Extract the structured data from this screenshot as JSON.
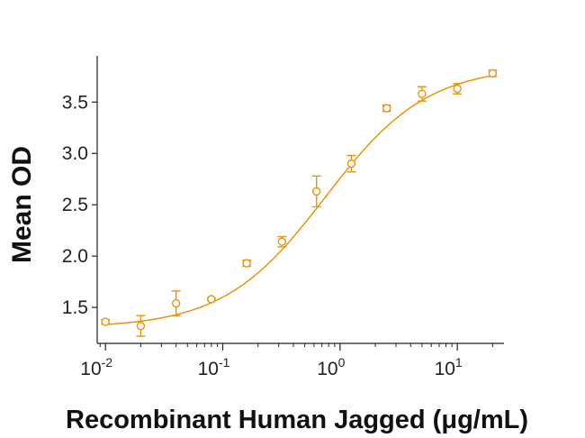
{
  "chart_data": {
    "type": "scatter",
    "title": "",
    "xlabel": "Recombinant Human Jagged (μg/mL)",
    "ylabel": "Mean OD",
    "x_scale": "log",
    "xlim": [
      0.0085,
      25
    ],
    "ylim": [
      1.15,
      3.95
    ],
    "x_ticks": [
      {
        "value": 0.01,
        "base": "10",
        "exp": "-2"
      },
      {
        "value": 0.1,
        "base": "10",
        "exp": "-1"
      },
      {
        "value": 1,
        "base": "10",
        "exp": "0"
      },
      {
        "value": 10,
        "base": "10",
        "exp": "1"
      }
    ],
    "y_ticks": [
      {
        "value": 1.5,
        "label": "1.5"
      },
      {
        "value": 2.0,
        "label": "2.0"
      },
      {
        "value": 2.5,
        "label": "2.5"
      },
      {
        "value": 3.0,
        "label": "3.0"
      },
      {
        "value": 3.5,
        "label": "3.5"
      }
    ],
    "grid": false,
    "legend": "none",
    "colors": {
      "series": "#e8930f",
      "axis": "#222222"
    },
    "series": [
      {
        "x": [
          0.01,
          0.02,
          0.04,
          0.08,
          0.16,
          0.32,
          0.63,
          1.25,
          2.5,
          5,
          10,
          20
        ],
        "y": [
          1.36,
          1.32,
          1.54,
          1.58,
          1.93,
          2.14,
          2.63,
          2.9,
          3.44,
          3.58,
          3.63,
          3.78
        ],
        "error": [
          0.02,
          0.1,
          0.12,
          0.01,
          0.03,
          0.05,
          0.15,
          0.08,
          0.03,
          0.07,
          0.05,
          0.03
        ]
      }
    ],
    "fit_curve": {
      "model": "4PL",
      "bottom": 1.3,
      "top": 3.85,
      "ec50": 0.75,
      "hill": 1.0
    }
  }
}
